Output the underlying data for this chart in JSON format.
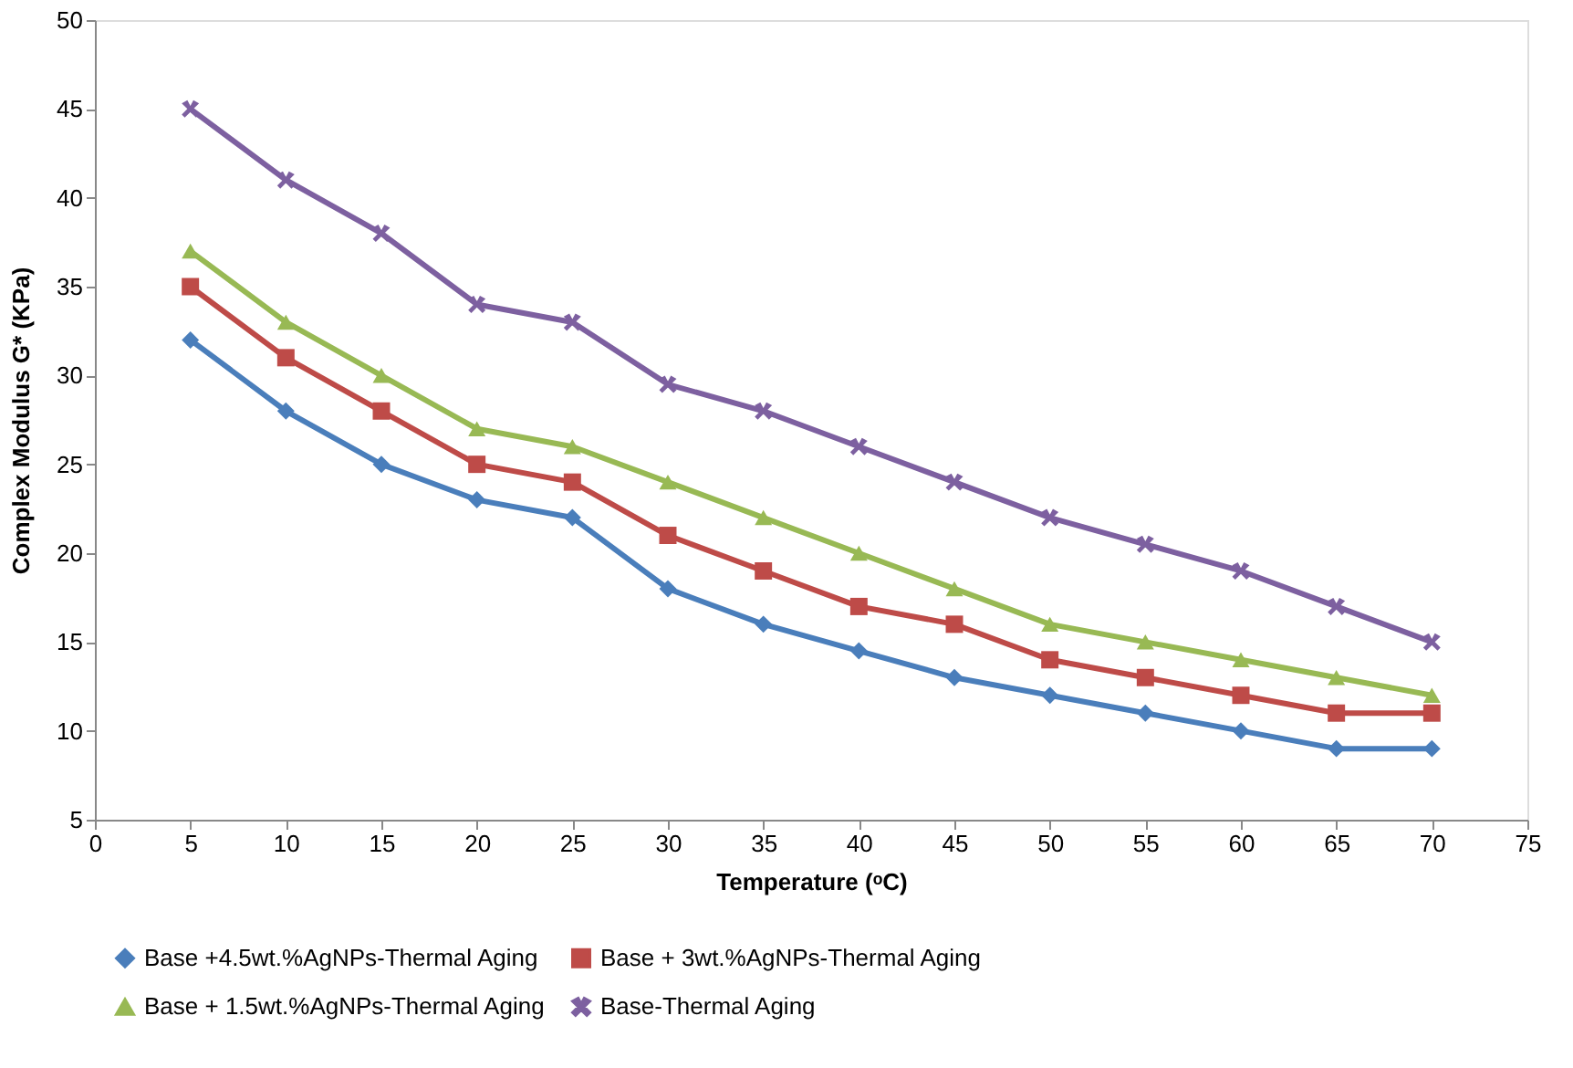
{
  "chart_data": {
    "type": "line",
    "xlabel": "Temperature (ᵒC)",
    "ylabel": "Complex Modulus G* (KPa)",
    "x": [
      5,
      10,
      15,
      20,
      25,
      30,
      35,
      40,
      45,
      50,
      55,
      60,
      65,
      70
    ],
    "xlim": [
      0,
      75
    ],
    "xticks": [
      0,
      5,
      10,
      15,
      20,
      25,
      30,
      35,
      40,
      45,
      50,
      55,
      60,
      65,
      70,
      75
    ],
    "ylim": [
      5,
      50
    ],
    "yticks": [
      5,
      10,
      15,
      20,
      25,
      30,
      35,
      40,
      45,
      50
    ],
    "grid": false,
    "legend": "bottom",
    "line_style": "solid",
    "series": [
      {
        "name": "Base +4.5wt.%AgNPs-Thermal Aging",
        "color": "#4a7ebb",
        "marker": "diamond",
        "values": [
          32,
          28,
          25,
          23,
          22,
          18,
          16,
          14.5,
          13,
          12,
          11,
          10,
          9,
          9
        ]
      },
      {
        "name": "Base + 3wt.%AgNPs-Thermal Aging",
        "color": "#be4b48",
        "marker": "square",
        "values": [
          35,
          31,
          28,
          25,
          24,
          21,
          19,
          17,
          16,
          14,
          13,
          12,
          11,
          11
        ]
      },
      {
        "name": "Base + 1.5wt.%AgNPs-Thermal Aging",
        "color": "#98b954",
        "marker": "triangle",
        "values": [
          37,
          33,
          30,
          27,
          26,
          24,
          22,
          20,
          18,
          16,
          15,
          14,
          13,
          12
        ]
      },
      {
        "name": "Base-Thermal Aging",
        "color": "#7d60a0",
        "marker": "cross",
        "values": [
          45,
          41,
          38,
          34,
          33,
          29.5,
          28,
          26,
          24,
          22,
          20.5,
          19,
          17,
          15
        ]
      }
    ]
  }
}
